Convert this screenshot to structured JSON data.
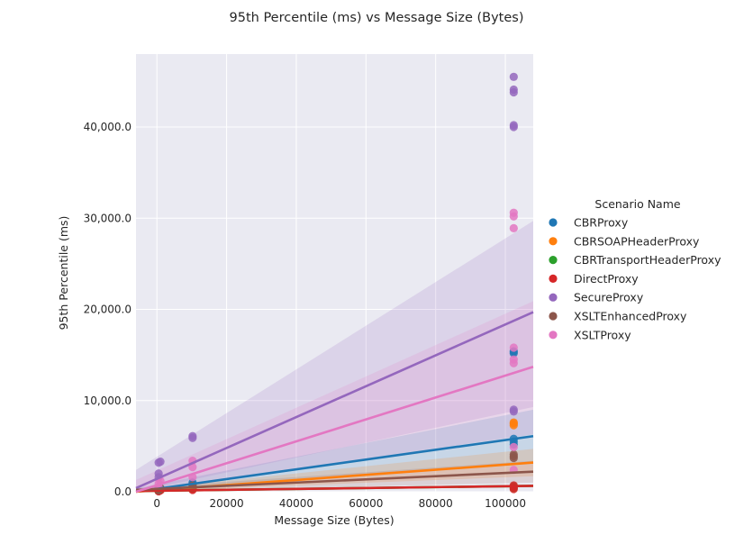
{
  "chart_data": {
    "type": "scatter",
    "title": "95th Percentile (ms) vs Message Size (Bytes)",
    "xlabel": "Message Size (Bytes)",
    "ylabel": "95th Percentile (ms)",
    "xlim": [
      -6000,
      108000
    ],
    "ylim": [
      0,
      48000
    ],
    "x_ticks": [
      0,
      20000,
      40000,
      60000,
      80000,
      100000
    ],
    "x_tick_labels": [
      "0",
      "20000",
      "40000",
      "60000",
      "80000",
      "100000"
    ],
    "y_ticks": [
      0,
      10000,
      20000,
      30000,
      40000
    ],
    "y_tick_labels": [
      "0.0",
      "10,000.0",
      "20,000.0",
      "30,000.0",
      "40,000.0"
    ],
    "grid": true,
    "legend": {
      "title": "Scenario Name",
      "placement": "right"
    },
    "series": [
      {
        "name": "CBRProxy",
        "color": "#1f77b4",
        "points": [
          [
            500,
            150
          ],
          [
            500,
            300
          ],
          [
            500,
            500
          ],
          [
            1000,
            400
          ],
          [
            10240,
            500
          ],
          [
            10240,
            800
          ],
          [
            10240,
            1000
          ],
          [
            102400,
            5200
          ],
          [
            102400,
            5500
          ],
          [
            102400,
            5800
          ],
          [
            102400,
            15200
          ],
          [
            102400,
            15400
          ]
        ],
        "fit": [
          [
            -6000,
            0
          ],
          [
            108000,
            6100
          ]
        ],
        "ci_upper": [
          [
            -6000,
            350
          ],
          [
            108000,
            9000
          ]
        ],
        "ci_lower": [
          [
            -6000,
            0
          ],
          [
            108000,
            3200
          ]
        ]
      },
      {
        "name": "CBRSOAPHeaderProxy",
        "color": "#ff7f0e",
        "points": [
          [
            500,
            100
          ],
          [
            500,
            250
          ],
          [
            1000,
            300
          ],
          [
            10240,
            400
          ],
          [
            10240,
            600
          ],
          [
            102400,
            7300
          ],
          [
            102400,
            7500
          ],
          [
            102400,
            7600
          ]
        ],
        "fit": [
          [
            -6000,
            0
          ],
          [
            108000,
            3200
          ]
        ],
        "ci_upper": [
          [
            -6000,
            200
          ],
          [
            108000,
            4700
          ]
        ],
        "ci_lower": [
          [
            -6000,
            0
          ],
          [
            108000,
            1700
          ]
        ]
      },
      {
        "name": "CBRTransportHeaderProxy",
        "color": "#2ca02c",
        "points": [
          [
            500,
            100
          ],
          [
            500,
            200
          ],
          [
            1000,
            200
          ],
          [
            10240,
            300
          ],
          [
            10240,
            400
          ],
          [
            102400,
            400
          ],
          [
            102400,
            600
          ]
        ],
        "fit": [
          [
            -6000,
            80
          ],
          [
            108000,
            650
          ]
        ],
        "ci_upper": [
          [
            -6000,
            150
          ],
          [
            108000,
            800
          ]
        ],
        "ci_lower": [
          [
            -6000,
            20
          ],
          [
            108000,
            500
          ]
        ]
      },
      {
        "name": "DirectProxy",
        "color": "#d62728",
        "points": [
          [
            500,
            50
          ],
          [
            500,
            100
          ],
          [
            1000,
            150
          ],
          [
            10240,
            200
          ],
          [
            10240,
            300
          ],
          [
            102400,
            300
          ],
          [
            102400,
            500
          ],
          [
            102400,
            700
          ]
        ],
        "fit": [
          [
            -6000,
            80
          ],
          [
            108000,
            650
          ]
        ],
        "ci_upper": [
          [
            -6000,
            130
          ],
          [
            108000,
            750
          ]
        ],
        "ci_lower": [
          [
            -6000,
            30
          ],
          [
            108000,
            550
          ]
        ]
      },
      {
        "name": "SecureProxy",
        "color": "#9467bd",
        "points": [
          [
            500,
            1600
          ],
          [
            500,
            2000
          ],
          [
            500,
            3200
          ],
          [
            1000,
            3300
          ],
          [
            10240,
            5900
          ],
          [
            10240,
            6100
          ],
          [
            102400,
            8800
          ],
          [
            102400,
            9000
          ],
          [
            102400,
            40000
          ],
          [
            102400,
            40200
          ],
          [
            102400,
            43800
          ],
          [
            102400,
            44100
          ],
          [
            102400,
            45500
          ]
        ],
        "fit": [
          [
            -6000,
            400
          ],
          [
            108000,
            19700
          ]
        ],
        "ci_upper": [
          [
            -6000,
            2400
          ],
          [
            108000,
            29700
          ]
        ],
        "ci_lower": [
          [
            -6000,
            0
          ],
          [
            108000,
            9300
          ]
        ]
      },
      {
        "name": "XSLTEnhancedProxy",
        "color": "#8c564b",
        "points": [
          [
            500,
            150
          ],
          [
            500,
            300
          ],
          [
            1000,
            400
          ],
          [
            10240,
            500
          ],
          [
            10240,
            700
          ],
          [
            102400,
            3700
          ],
          [
            102400,
            3900
          ],
          [
            102400,
            4100
          ]
        ],
        "fit": [
          [
            -6000,
            200
          ],
          [
            108000,
            2200
          ]
        ],
        "ci_upper": [
          [
            -6000,
            400
          ],
          [
            108000,
            3400
          ]
        ],
        "ci_lower": [
          [
            -6000,
            0
          ],
          [
            108000,
            1000
          ]
        ]
      },
      {
        "name": "XSLTProxy",
        "color": "#e377c2",
        "points": [
          [
            500,
            500
          ],
          [
            500,
            900
          ],
          [
            1000,
            1200
          ],
          [
            10240,
            1600
          ],
          [
            10240,
            2700
          ],
          [
            10240,
            3400
          ],
          [
            102400,
            2400
          ],
          [
            102400,
            4900
          ],
          [
            102400,
            14100
          ],
          [
            102400,
            14500
          ],
          [
            102400,
            15800
          ],
          [
            102400,
            28900
          ],
          [
            102400,
            30200
          ],
          [
            102400,
            30600
          ]
        ],
        "fit": [
          [
            -6000,
            0
          ],
          [
            108000,
            13700
          ]
        ],
        "ci_upper": [
          [
            -6000,
            1300
          ],
          [
            108000,
            20900
          ]
        ],
        "ci_lower": [
          [
            -6000,
            0
          ],
          [
            108000,
            6300
          ]
        ]
      }
    ]
  }
}
